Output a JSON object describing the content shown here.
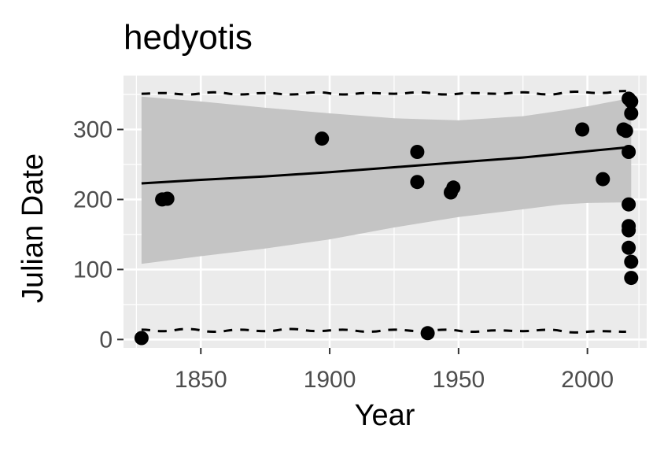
{
  "chart_data": {
    "type": "scatter",
    "title": "hedyotis",
    "xlabel": "Year",
    "ylabel": "Julian Date",
    "xlim": [
      1820,
      2023
    ],
    "ylim": [
      -12,
      377
    ],
    "x_ticks": [
      1850,
      1900,
      1950,
      2000
    ],
    "x_tick_labels": [
      "1850",
      "1900",
      "1950",
      "2000"
    ],
    "y_ticks": [
      0,
      100,
      200,
      300
    ],
    "y_tick_labels": [
      "0",
      "100",
      "200",
      "300"
    ],
    "x_minor_ticks": [
      1825,
      1875,
      1925,
      1975,
      2020
    ],
    "y_minor_ticks": [
      50,
      150,
      250,
      350
    ],
    "grid": true,
    "legend": "none",
    "colors": {
      "panel_bg": "#ebebeb",
      "grid": "#ffffff",
      "points": "#000000",
      "ribbon": "#c4c4c4",
      "line": "#000000",
      "tick": "#333333"
    },
    "points": [
      {
        "x": 1827,
        "y": 2
      },
      {
        "x": 1835,
        "y": 200
      },
      {
        "x": 1837,
        "y": 201
      },
      {
        "x": 1897,
        "y": 287
      },
      {
        "x": 1934,
        "y": 268
      },
      {
        "x": 1934,
        "y": 225
      },
      {
        "x": 1938,
        "y": 9
      },
      {
        "x": 1947,
        "y": 210
      },
      {
        "x": 1948,
        "y": 217
      },
      {
        "x": 1998,
        "y": 300
      },
      {
        "x": 2006,
        "y": 229
      },
      {
        "x": 2014,
        "y": 300
      },
      {
        "x": 2015,
        "y": 298
      },
      {
        "x": 2016,
        "y": 268
      },
      {
        "x": 2016,
        "y": 193
      },
      {
        "x": 2016,
        "y": 162
      },
      {
        "x": 2016,
        "y": 156
      },
      {
        "x": 2016,
        "y": 131
      },
      {
        "x": 2016,
        "y": 344
      },
      {
        "x": 2017,
        "y": 340
      },
      {
        "x": 2017,
        "y": 323
      },
      {
        "x": 2017,
        "y": 111
      },
      {
        "x": 2017,
        "y": 88
      }
    ],
    "trend": {
      "x": [
        1827,
        1850,
        1875,
        1900,
        1925,
        1950,
        1975,
        2000,
        2017
      ],
      "y": [
        223,
        228,
        233,
        239,
        246,
        253,
        260,
        269,
        275
      ]
    },
    "ribbon": {
      "x": [
        1827,
        1850,
        1875,
        1900,
        1925,
        1950,
        1975,
        1990,
        2000,
        2017
      ],
      "lower": [
        108,
        119,
        130,
        143,
        160,
        175,
        186,
        193,
        195,
        196
      ],
      "upper": [
        347,
        340,
        331,
        323,
        316,
        313,
        319,
        327,
        333,
        345
      ]
    },
    "upper_dashed": {
      "x": [
        1827,
        1835,
        1845,
        1855,
        1865,
        1875,
        1885,
        1895,
        1905,
        1915,
        1925,
        1935,
        1945,
        1955,
        1965,
        1975,
        1985,
        1995,
        2005,
        2015
      ],
      "y": [
        351,
        352,
        350,
        353,
        350,
        352,
        350,
        353,
        350,
        352,
        351,
        353,
        350,
        352,
        351,
        353,
        350,
        354,
        352,
        355
      ]
    },
    "lower_dashed": {
      "x": [
        1827,
        1835,
        1845,
        1855,
        1865,
        1875,
        1885,
        1895,
        1905,
        1915,
        1925,
        1935,
        1945,
        1955,
        1965,
        1975,
        1985,
        1995,
        2005,
        2015
      ],
      "y": [
        14,
        12,
        15,
        11,
        14,
        12,
        15,
        12,
        14,
        11,
        14,
        12,
        14,
        11,
        13,
        12,
        14,
        10,
        12,
        11
      ]
    }
  }
}
